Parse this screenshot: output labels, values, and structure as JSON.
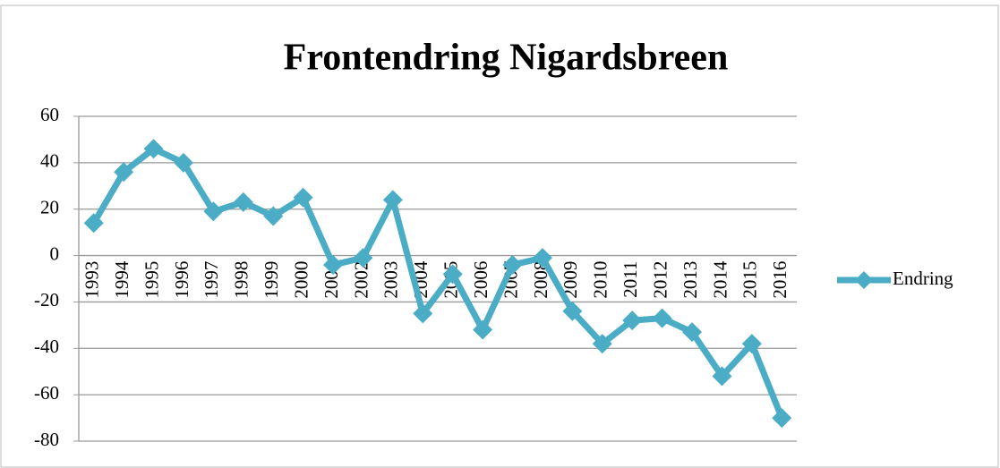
{
  "chart_data": {
    "type": "line",
    "title": "Frontendring Nigardsbreen",
    "categories": [
      "1993",
      "1994",
      "1995",
      "1996",
      "1997",
      "1998",
      "1999",
      "2000",
      "2001",
      "2002",
      "2003",
      "2004",
      "2005",
      "2006",
      "2007",
      "2008",
      "2009",
      "2010",
      "2011",
      "2012",
      "2013",
      "2014",
      "2015",
      "2016"
    ],
    "series": [
      {
        "name": "Endring",
        "color": "#4bacc6",
        "values": [
          14,
          36,
          46,
          40,
          19,
          23,
          17,
          25,
          -4,
          -1,
          24,
          -25,
          -8,
          -32,
          -4,
          -1,
          -24,
          -38,
          -28,
          -27,
          -33,
          -52,
          -38,
          -70
        ]
      }
    ],
    "ylim": [
      -80,
      60
    ],
    "yticks": [
      -80,
      -60,
      -40,
      -20,
      0,
      20,
      40,
      60
    ],
    "grid": true,
    "legend": "right"
  }
}
